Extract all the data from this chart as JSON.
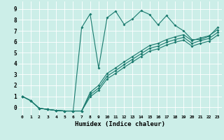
{
  "xlabel": "Humidex (Indice chaleur)",
  "bg_color": "#cceee8",
  "grid_color": "#ffffff",
  "line_color": "#1a7a6e",
  "xlim": [
    -0.5,
    23.5
  ],
  "ylim": [
    -0.7,
    9.7
  ],
  "xticks": [
    0,
    1,
    2,
    3,
    4,
    5,
    6,
    7,
    8,
    9,
    10,
    11,
    12,
    13,
    14,
    15,
    16,
    17,
    18,
    19,
    20,
    21,
    22,
    23
  ],
  "yticks": [
    0,
    1,
    2,
    3,
    4,
    5,
    6,
    7,
    8,
    9
  ],
  "line1_x": [
    0,
    1,
    2,
    3,
    4,
    5,
    6,
    7,
    8,
    9,
    10,
    11,
    12,
    13,
    14,
    15,
    16,
    17,
    18,
    19,
    20,
    21,
    22,
    23
  ],
  "line1_y": [
    1.0,
    0.6,
    -0.1,
    -0.2,
    -0.3,
    -0.35,
    -0.35,
    7.3,
    8.55,
    3.6,
    8.2,
    8.8,
    7.6,
    8.1,
    8.85,
    8.5,
    7.55,
    8.4,
    7.5,
    7.0,
    6.2,
    6.2,
    6.5,
    7.3
  ],
  "line2_x": [
    0,
    1,
    2,
    3,
    4,
    5,
    6,
    7,
    8,
    9,
    10,
    11,
    12,
    13,
    14,
    15,
    16,
    17,
    18,
    19,
    20,
    21,
    22,
    23
  ],
  "line2_y": [
    1.0,
    0.6,
    -0.1,
    -0.2,
    -0.3,
    -0.35,
    -0.35,
    -0.35,
    1.35,
    2.0,
    3.1,
    3.6,
    4.15,
    4.65,
    5.15,
    5.65,
    5.85,
    6.2,
    6.45,
    6.65,
    6.1,
    6.35,
    6.55,
    7.1
  ],
  "line3_x": [
    0,
    1,
    2,
    3,
    4,
    5,
    6,
    7,
    8,
    9,
    10,
    11,
    12,
    13,
    14,
    15,
    16,
    17,
    18,
    19,
    20,
    21,
    22,
    23
  ],
  "line3_y": [
    1.0,
    0.6,
    -0.1,
    -0.2,
    -0.3,
    -0.35,
    -0.35,
    -0.35,
    1.15,
    1.75,
    2.85,
    3.35,
    3.9,
    4.4,
    4.9,
    5.4,
    5.6,
    5.95,
    6.2,
    6.4,
    5.85,
    6.1,
    6.3,
    6.85
  ],
  "line4_x": [
    0,
    1,
    2,
    3,
    4,
    5,
    6,
    7,
    8,
    9,
    10,
    11,
    12,
    13,
    14,
    15,
    16,
    17,
    18,
    19,
    20,
    21,
    22,
    23
  ],
  "line4_y": [
    1.0,
    0.6,
    -0.1,
    -0.2,
    -0.3,
    -0.35,
    -0.35,
    -0.35,
    0.95,
    1.55,
    2.6,
    3.1,
    3.65,
    4.15,
    4.65,
    5.15,
    5.35,
    5.7,
    5.95,
    6.15,
    5.6,
    5.85,
    6.05,
    6.6
  ]
}
